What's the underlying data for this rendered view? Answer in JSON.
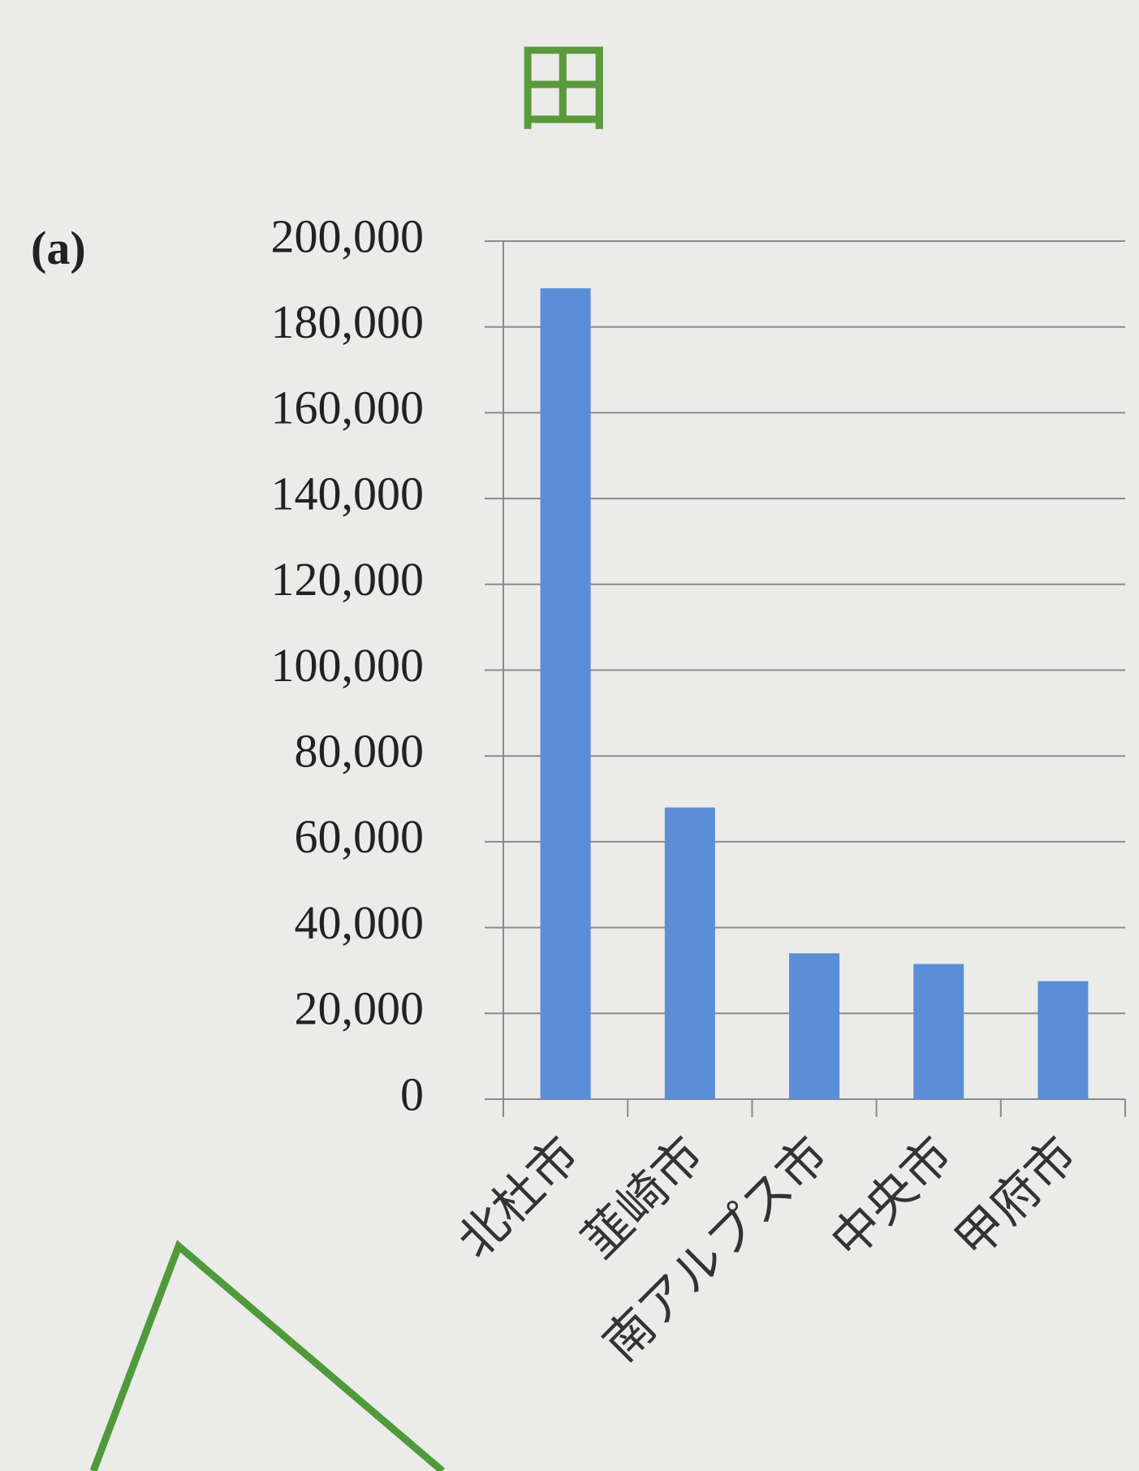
{
  "chart_data": {
    "type": "bar",
    "title": "田",
    "panel_label": "(a)",
    "categories": [
      "北杜市",
      "韮崎市",
      "南アルプス市",
      "中央市",
      "甲府市"
    ],
    "values": [
      189000,
      68000,
      34000,
      31500,
      27500
    ],
    "color": "#5b8ed6",
    "ylim": [
      0,
      200000
    ],
    "yticks": [
      0,
      {
        "value": 20000,
        "label": "20,000"
      },
      {
        "value": 40000,
        "label": "40,000"
      },
      {
        "value": 60000,
        "label": "60,000"
      },
      {
        "value": 80000,
        "label": "80,000"
      },
      {
        "value": 100000,
        "label": "100,000"
      },
      {
        "value": 120000,
        "label": "120,000"
      },
      {
        "value": 140000,
        "label": "140,000"
      },
      {
        "value": 160000,
        "label": "160,000"
      },
      {
        "value": 180000,
        "label": "180,000"
      },
      {
        "value": 200000,
        "label": "200,000"
      }
    ],
    "grid": true
  }
}
